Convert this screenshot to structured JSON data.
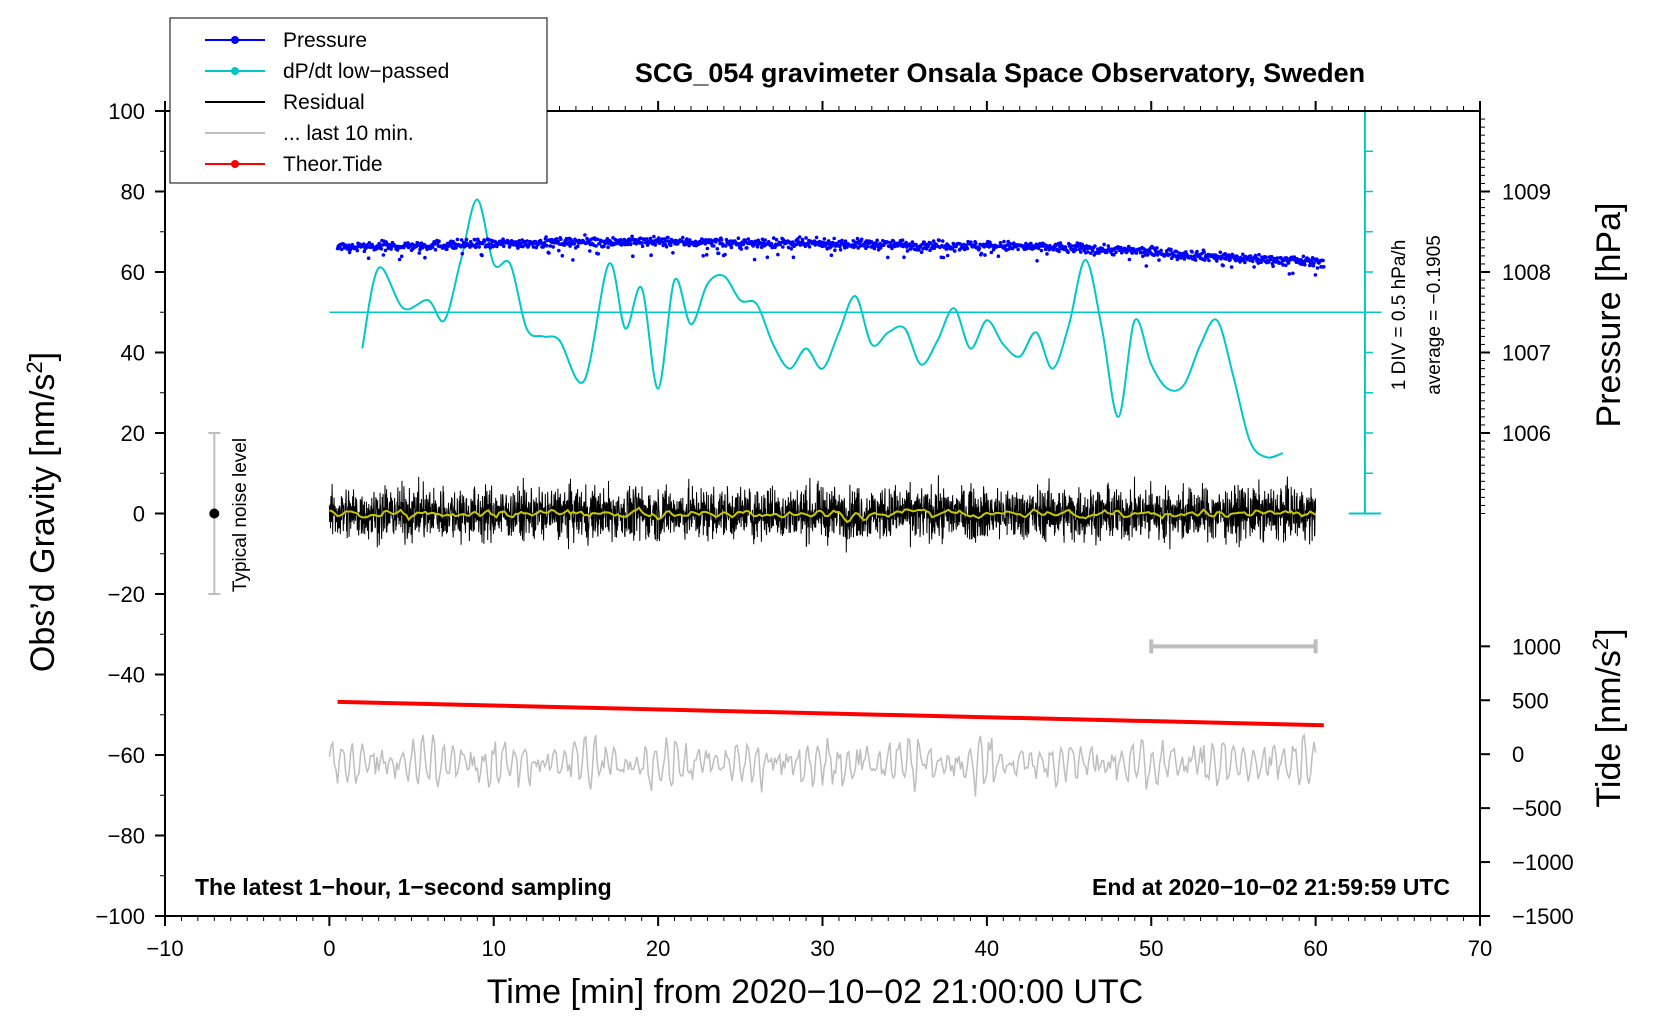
{
  "chart_data": {
    "type": "line",
    "title": "SCG_054 gravimeter Onsala Space Observatory, Sweden",
    "xlabel": "Time [min] from 2020−10−02 21:00:00 UTC",
    "ylabel": "Obs’d Gravity [nm/s",
    "ylabel_sup": "2",
    "ylabel_close": "]",
    "y2label": "Pressure [hPa]",
    "y3label": "Tide [nm/s",
    "y3label_sup": "2",
    "y3label_close": "]",
    "xlim": [
      -10,
      70
    ],
    "ylim": [
      -100,
      100
    ],
    "x_ticks": [
      "−10",
      "0",
      "10",
      "20",
      "30",
      "40",
      "50",
      "60",
      "70"
    ],
    "y_ticks": [
      "100",
      "80",
      "60",
      "40",
      "20",
      "0",
      "−20",
      "−40",
      "−60",
      "−80",
      "−100"
    ],
    "pressure_ticks": [
      "1009",
      "1008",
      "1007",
      "1006"
    ],
    "tide_ticks": [
      "1000",
      "500",
      "0",
      "−500",
      "−1000",
      "−1500"
    ],
    "pressure_axis": {
      "value_at_gravity_0": 1005.0,
      "value_at_gravity_100": 1009.99,
      "hpa_per_20_gravity": 1.0
    },
    "tide_axis": {
      "value_at_gravity_min100": -1500,
      "value_at_gravity_min33": 1000
    },
    "legend": [
      {
        "label": "Pressure",
        "color": "#0000ff",
        "marker": true
      },
      {
        "label": "dP/dt low−passed",
        "color": "#00c8c8",
        "marker": true
      },
      {
        "label": "Residual",
        "color": "#000000",
        "marker": false
      },
      {
        "label": "... last 10 min.",
        "color": "#bebebe",
        "marker": false
      },
      {
        "label": "Theor.Tide",
        "color": "#ff0000",
        "marker": true
      }
    ],
    "annotations": {
      "left_note": "The latest 1−hour, 1−second sampling",
      "right_note": "End at 2020−10−02 21:59:59 UTC",
      "noise_label": "Typical noise level",
      "noise_center": 0,
      "noise_range": [
        -20,
        20
      ],
      "noise_x": -7,
      "dpdt_scale": "1 DIV = 0.5 hPa/h",
      "dpdt_average": "average = −0.1905",
      "dpdt_baseline": 50,
      "dpdt_div_step": 5,
      "dpdt_axis_x": 63,
      "ten_min_bar": [
        50,
        60
      ],
      "ten_min_bar_y": -33
    },
    "series": [
      {
        "name": "Pressure",
        "color": "#0000ff",
        "x": [
          0.5,
          5,
          10,
          15,
          20,
          25,
          30,
          35,
          40,
          45,
          50,
          55,
          60
        ],
        "y": [
          66,
          66.5,
          67,
          67.5,
          67.5,
          67.2,
          67,
          66.8,
          66.5,
          66,
          65,
          63.5,
          62.5
        ]
      },
      {
        "name": "dP/dt low−passed",
        "color": "#00c8c8",
        "x": [
          2,
          3,
          4.5,
          6,
          7,
          8,
          9,
          10,
          11,
          12,
          13,
          14,
          15.5,
          17,
          18,
          19,
          20,
          21,
          22,
          23,
          24,
          25,
          26,
          27,
          28,
          29,
          30,
          31,
          32,
          33,
          34,
          35,
          36,
          37,
          38,
          39,
          40,
          41,
          42,
          43,
          44,
          45,
          46,
          47,
          48,
          49,
          50,
          51,
          52,
          53,
          54,
          55,
          56,
          57,
          58
        ],
        "y": [
          41,
          61,
          51,
          53,
          48,
          63,
          78,
          62,
          62,
          46,
          44,
          43,
          33,
          62,
          46,
          56,
          31,
          58,
          47,
          57,
          59,
          53,
          52,
          42,
          36,
          41,
          36,
          45,
          54,
          42,
          45,
          46,
          37,
          43,
          51,
          41,
          48,
          42,
          39,
          45,
          36,
          47,
          63,
          46,
          24,
          48,
          37,
          31,
          32,
          42,
          48,
          34,
          18,
          14,
          15
        ]
      },
      {
        "name": "Residual",
        "color": "#000000",
        "x": [
          0,
          60
        ],
        "y": [
          0,
          0
        ],
        "note": "1-second samples, amplitude about ±8 nm/s2 around 0"
      },
      {
        "name": "Residual smoothed",
        "color": "#c8c800",
        "x": [
          0,
          60
        ],
        "y": [
          0,
          0
        ]
      },
      {
        "name": "... last 10 min.",
        "color": "#bebebe",
        "x": [
          0,
          60
        ],
        "y": [
          -62,
          -62
        ],
        "note": "oscillation between about -68 and -54"
      },
      {
        "name": "Theor.Tide",
        "color": "#ff0000",
        "x": [
          0.5,
          60.5
        ],
        "y": [
          -46.8,
          -52.6
        ]
      }
    ]
  }
}
